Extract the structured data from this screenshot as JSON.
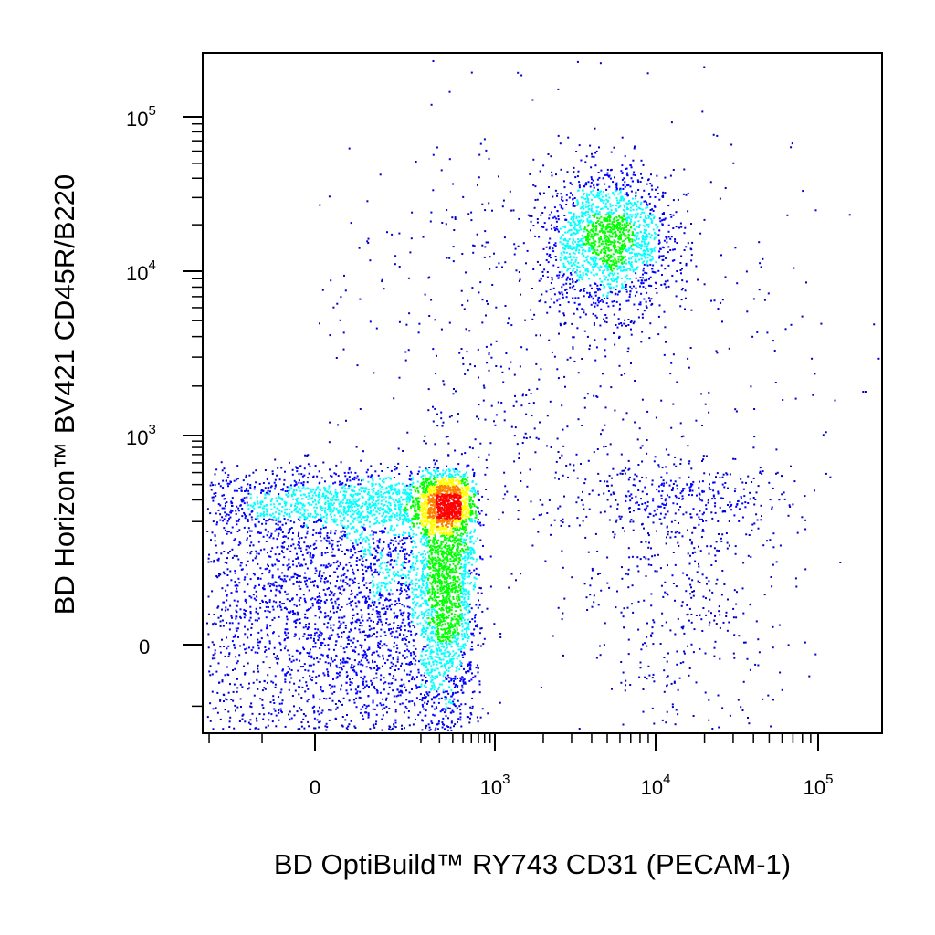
{
  "chart_data": {
    "type": "scatter",
    "subtype": "flow-cytometry-density-dot-plot",
    "title": "",
    "xlabel": "BD OptiBuild™ RY743 CD31 (PECAM-1)",
    "ylabel": "BD Horizon™ BV421 CD45R/B220",
    "x_scale": "biexponential",
    "y_scale": "biexponential",
    "x_ticks": [
      {
        "value": 0,
        "base": "0",
        "exp": ""
      },
      {
        "value": 1000,
        "base": "10",
        "exp": "3"
      },
      {
        "value": 10000,
        "base": "10",
        "exp": "4"
      },
      {
        "value": 100000,
        "base": "10",
        "exp": "5"
      }
    ],
    "y_ticks": [
      {
        "value": 0,
        "base": "0",
        "exp": ""
      },
      {
        "value": 1000,
        "base": "10",
        "exp": "3"
      },
      {
        "value": 10000,
        "base": "10",
        "exp": "4"
      },
      {
        "value": 100000,
        "base": "10",
        "exp": "5"
      }
    ],
    "density_colors": [
      "#0000cc",
      "#0000ff",
      "#00ffff",
      "#00ff00",
      "#ffff00",
      "#ff8000",
      "#ff0000"
    ],
    "grid": false,
    "legend": "none",
    "populations": [
      {
        "x_center": 80,
        "y_center": 80,
        "x_spread": 230,
        "y_spread": 190,
        "relative_size": 0.5
      },
      {
        "x_center": 300,
        "y_center": 200,
        "x_spread": 160,
        "y_spread": 140,
        "relative_size": 0.2
      },
      {
        "x_center": 5000,
        "y_center": 16000,
        "x_spread_log10": 0.2,
        "y_spread_log10": 0.22,
        "relative_size": 0.16
      },
      {
        "x_center": 15000,
        "y_center": 150,
        "x_spread_log10": 0.35,
        "y_spread": 200,
        "relative_size": 0.07
      },
      {
        "x_center": 2000,
        "y_center": 3000,
        "x_spread_log10": 0.8,
        "y_spread_log10": 0.8,
        "relative_size": 0.07
      }
    ]
  }
}
